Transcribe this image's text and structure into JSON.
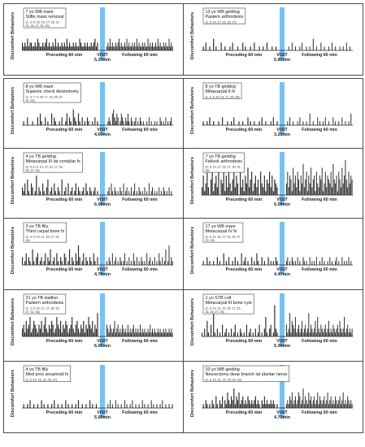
{
  "y_label": "Discomfort Behaviors",
  "segments": {
    "pre": "Preceding 60 min",
    "post": "Following 60 min",
    "visit": "VISIT"
  },
  "colors": {
    "bar": "#2b2b2b",
    "visit": "#78c1f3"
  },
  "chart_data": [
    {
      "type": "bar",
      "title": "7 yo WB mare",
      "subtitle": "Stifle mass removal",
      "codes": "(1, 3, 9, 15, 16, 17, 18, 21, 23, 25, 27, 29, 33)",
      "visit_duration": "5.23min",
      "pre": [
        2,
        1,
        2,
        1,
        3,
        1,
        2,
        2,
        1,
        1,
        2,
        1,
        3,
        2,
        1,
        1,
        2,
        1,
        2,
        3,
        1,
        2,
        1,
        1,
        2,
        1,
        3,
        1,
        2,
        1,
        1,
        2,
        1,
        2,
        1,
        3,
        1,
        2,
        1,
        1,
        2,
        1,
        2,
        1,
        1,
        3,
        2,
        1,
        1,
        2,
        1,
        2,
        1,
        1,
        2,
        1,
        2,
        3,
        1,
        2
      ],
      "post": [
        1,
        2,
        1,
        3,
        1,
        2,
        1,
        1,
        2,
        1,
        2,
        3,
        1,
        2,
        1,
        1,
        2,
        1,
        3,
        1,
        2,
        1,
        1,
        2,
        1,
        2,
        1,
        3,
        1,
        2,
        1,
        1,
        2,
        1,
        2,
        1,
        1,
        3,
        1,
        2,
        1,
        2,
        1,
        1,
        2,
        1,
        3,
        1,
        2,
        1,
        1,
        2,
        1,
        2,
        1,
        1,
        3,
        1,
        2,
        1
      ]
    },
    {
      "type": "bar",
      "title": "13 yo WB gelding",
      "subtitle": "Pastern arthrodesis",
      "codes": "(3, 9, 14, 17, 23, 25, 27)",
      "visit_duration": "5.83min",
      "pre": [
        0,
        1,
        0,
        2,
        0,
        0,
        1,
        0,
        0,
        3,
        0,
        1,
        0,
        0,
        0,
        2,
        0,
        0,
        1,
        0,
        0,
        0,
        1,
        0,
        2,
        0,
        0,
        0,
        1,
        0,
        0,
        0,
        2,
        0,
        1,
        0,
        0,
        0,
        1,
        0,
        0,
        2,
        0,
        0,
        0,
        1,
        0,
        0,
        1,
        0,
        0,
        2,
        0,
        0,
        0,
        1,
        0,
        0,
        1,
        0
      ],
      "post": [
        0,
        0,
        1,
        0,
        0,
        2,
        0,
        0,
        1,
        0,
        0,
        0,
        1,
        0,
        2,
        0,
        0,
        0,
        1,
        0,
        0,
        1,
        0,
        0,
        3,
        0,
        0,
        1,
        0,
        0,
        0,
        2,
        0,
        0,
        1,
        0,
        0,
        0,
        1,
        0,
        0,
        2,
        0,
        0,
        1,
        0,
        0,
        0,
        1,
        0,
        0,
        1,
        0,
        0,
        2,
        0,
        0,
        1,
        0,
        0
      ]
    },
    {
      "type": "bar",
      "title": "8 yo WB mare",
      "subtitle": "Superior check desmotomy",
      "codes": "(1, 3, 7, 9, 16, 17, 23, 25, 27, 30, 33)",
      "visit_duration": "4.63min",
      "pre": [
        0,
        1,
        0,
        0,
        2,
        0,
        0,
        0,
        1,
        0,
        0,
        0,
        2,
        0,
        3,
        1,
        0,
        0,
        2,
        0,
        1,
        0,
        0,
        3,
        0,
        2,
        1,
        0,
        0,
        1,
        0,
        2,
        0,
        0,
        1,
        3,
        0,
        2,
        1,
        0,
        4,
        2,
        1,
        0,
        3,
        1,
        0,
        2,
        0,
        1,
        0,
        2,
        1,
        0,
        0,
        1,
        0,
        2,
        0,
        1
      ],
      "post": [
        0,
        1,
        2,
        1,
        0,
        3,
        4,
        2,
        1,
        3,
        2,
        0,
        1,
        3,
        2,
        1,
        0,
        2,
        1,
        3,
        1,
        0,
        2,
        1,
        0,
        1,
        2,
        0,
        1,
        0,
        2,
        1,
        0,
        1,
        0,
        0,
        1,
        0,
        2,
        0,
        1,
        0,
        0,
        1,
        0,
        1,
        0,
        0,
        2,
        1,
        0,
        1,
        0,
        2,
        0,
        1,
        0,
        1,
        2,
        0
      ]
    },
    {
      "type": "bar",
      "title": "8 yo TB gelding",
      "subtitle": "Metacarpal II fx",
      "codes": "(1, 3, 9, 10, 11, 17, 25, 33)",
      "visit_duration": "3.23min",
      "pre": [
        0,
        1,
        0,
        0,
        1,
        0,
        2,
        0,
        0,
        1,
        0,
        0,
        0,
        1,
        0,
        0,
        2,
        0,
        0,
        0,
        1,
        0,
        0,
        1,
        0,
        2,
        0,
        0,
        0,
        1,
        0,
        0,
        1,
        0,
        0,
        0,
        2,
        0,
        1,
        0,
        0,
        1,
        0,
        0,
        0,
        1,
        0,
        2,
        0,
        0,
        1,
        0,
        0,
        0,
        1,
        0,
        2,
        0,
        0,
        1
      ],
      "post": [
        0,
        1,
        0,
        2,
        0,
        0,
        1,
        0,
        0,
        0,
        1,
        0,
        2,
        0,
        0,
        1,
        0,
        0,
        1,
        0,
        0,
        3,
        0,
        0,
        1,
        0,
        0,
        0,
        2,
        0,
        1,
        0,
        0,
        1,
        0,
        2,
        0,
        0,
        1,
        0,
        0,
        0,
        2,
        0,
        1,
        0,
        0,
        1,
        0,
        0,
        2,
        0,
        0,
        1,
        0,
        0,
        1,
        0,
        3,
        0
      ]
    },
    {
      "type": "bar",
      "title": "4 yo TB gelding",
      "subtitle": "Metacarpal III lat condylar fx",
      "codes": "(2, 4, 6, 9, 10, 12, 13, 17, 18, 25, 27, 33)",
      "visit_duration": "6.08min",
      "pre": [
        2,
        1,
        3,
        0,
        4,
        1,
        0,
        3,
        2,
        0,
        1,
        5,
        0,
        2,
        1,
        0,
        3,
        1,
        0,
        2,
        4,
        0,
        1,
        2,
        0,
        3,
        1,
        0,
        2,
        1,
        0,
        4,
        0,
        1,
        2,
        0,
        3,
        0,
        1,
        2,
        0,
        1,
        3,
        0,
        2,
        1,
        0,
        1,
        2,
        0,
        3,
        1,
        0,
        2,
        1,
        0,
        1,
        2,
        0,
        1
      ],
      "post": [
        0,
        1,
        2,
        0,
        3,
        1,
        0,
        2,
        1,
        0,
        1,
        0,
        2,
        1,
        0,
        3,
        0,
        1,
        2,
        0,
        1,
        0,
        2,
        0,
        1,
        3,
        0,
        1,
        0,
        2,
        1,
        0,
        1,
        0,
        2,
        0,
        1,
        0,
        3,
        0,
        1,
        2,
        0,
        1,
        0,
        1,
        0,
        2,
        0,
        1,
        0,
        2,
        1,
        0,
        1,
        0,
        2,
        0,
        1,
        0
      ]
    },
    {
      "type": "bar",
      "title": "7 yo TB gelding",
      "subtitle": "Fetlock arthrodesis",
      "codes": "(2, 9, 10, 17, 23, 27, 30, 31, 33)",
      "visit_duration": "6.58min",
      "pre": [
        2,
        5,
        1,
        3,
        6,
        2,
        0,
        4,
        7,
        1,
        3,
        5,
        2,
        6,
        0,
        4,
        3,
        8,
        1,
        5,
        2,
        6,
        3,
        1,
        4,
        7,
        2,
        5,
        3,
        0,
        6,
        2,
        4,
        1,
        5,
        3,
        7,
        2,
        4,
        6,
        1,
        3,
        5,
        2,
        4,
        0,
        6,
        3,
        2,
        5,
        1,
        4,
        3,
        6,
        2,
        5,
        1,
        4,
        3,
        2
      ],
      "post": [
        3,
        6,
        2,
        5,
        4,
        1,
        7,
        3,
        5,
        2,
        6,
        4,
        1,
        5,
        3,
        8,
        2,
        4,
        6,
        1,
        5,
        3,
        7,
        2,
        4,
        5,
        1,
        6,
        3,
        2,
        5,
        4,
        7,
        1,
        3,
        6,
        2,
        5,
        4,
        3,
        6,
        2,
        8,
        4,
        3,
        5,
        1,
        6,
        4,
        2,
        7,
        3,
        5,
        9,
        4,
        2,
        6,
        3,
        5,
        4
      ]
    },
    {
      "type": "bar",
      "title": "3 yo TB filly",
      "subtitle": "Third carpal bone fx",
      "codes": "(2, 3, 9, 10, 11, 16, 17, 23, 25)",
      "visit_duration": "4.78min",
      "pre": [
        2,
        0,
        1,
        3,
        0,
        2,
        1,
        0,
        4,
        1,
        0,
        2,
        3,
        0,
        1,
        2,
        0,
        1,
        3,
        0,
        2,
        1,
        4,
        0,
        1,
        2,
        0,
        3,
        1,
        0,
        2,
        1,
        0,
        3,
        2,
        0,
        1,
        4,
        0,
        2,
        1,
        0,
        3,
        1,
        5,
        2,
        0,
        1,
        3,
        0,
        2,
        1,
        0,
        2,
        1,
        0,
        3,
        1,
        0,
        2
      ],
      "post": [
        1,
        0,
        2,
        1,
        0,
        3,
        0,
        1,
        2,
        0,
        1,
        0,
        2,
        1,
        0,
        1,
        3,
        0,
        1,
        0,
        2,
        0,
        1,
        0,
        3,
        1,
        0,
        2,
        0,
        1,
        0,
        2,
        1,
        0,
        1,
        0,
        3,
        0,
        1,
        2,
        0,
        1,
        0,
        2,
        0,
        1,
        0,
        3,
        1,
        0,
        2,
        0,
        1,
        4,
        0,
        1,
        5,
        0,
        2,
        1
      ]
    },
    {
      "type": "bar",
      "title": "17 yo WB mare",
      "subtitle": "Metacarpal IV fx",
      "codes": "(2, 9, 11, 16, 17, 23, 25, 27, 29, 33)",
      "visit_duration": "4.47min",
      "pre": [
        0,
        1,
        0,
        0,
        2,
        0,
        1,
        0,
        0,
        1,
        0,
        0,
        2,
        0,
        1,
        0,
        0,
        3,
        0,
        1,
        0,
        2,
        0,
        0,
        1,
        0,
        2,
        0,
        1,
        0,
        0,
        3,
        0,
        1,
        2,
        0,
        1,
        0,
        0,
        2,
        0,
        1,
        0,
        3,
        1,
        0,
        0,
        2,
        0,
        1,
        0,
        0,
        2,
        0,
        1,
        0,
        1,
        0,
        2,
        1
      ],
      "post": [
        1,
        2,
        0,
        1,
        0,
        2,
        1,
        0,
        1,
        0,
        2,
        0,
        1,
        0,
        0,
        2,
        1,
        0,
        1,
        0,
        0,
        2,
        0,
        1,
        0,
        1,
        0,
        2,
        0,
        0,
        1,
        0,
        2,
        0,
        1,
        0,
        0,
        1,
        0,
        2,
        0,
        1,
        0,
        0,
        1,
        2,
        0,
        1,
        0,
        0,
        2,
        0,
        1,
        0,
        1,
        0,
        2,
        0,
        1,
        0
      ]
    },
    {
      "type": "bar",
      "title": "21 yo TB stallion",
      "subtitle": "Pastern arthrodesis",
      "codes": "(1, 3, 9, 10, 11, 17, 18, 23, 27, 31, 33)",
      "visit_duration": "6.05min",
      "pre": [
        2,
        3,
        1,
        4,
        2,
        3,
        5,
        1,
        2,
        4,
        3,
        2,
        1,
        3,
        2,
        4,
        1,
        3,
        5,
        2,
        1,
        3,
        2,
        4,
        3,
        1,
        2,
        5,
        3,
        2,
        4,
        1,
        3,
        2,
        4,
        3,
        1,
        2,
        3,
        5,
        2,
        1,
        3,
        4,
        2,
        1,
        3,
        2,
        4,
        1,
        3,
        2,
        5,
        3,
        2,
        4,
        1,
        3,
        2,
        6
      ],
      "post": [
        3,
        2,
        1,
        3,
        2,
        1,
        2,
        4,
        1,
        2,
        3,
        1,
        2,
        1,
        3,
        2,
        1,
        2,
        1,
        3,
        1,
        2,
        1,
        2,
        3,
        1,
        2,
        1,
        2,
        1,
        3,
        1,
        2,
        1,
        2,
        1,
        1,
        2,
        1,
        3,
        1,
        2,
        1,
        2,
        1,
        1,
        2,
        1,
        2,
        1,
        1,
        2,
        1,
        2,
        1,
        1,
        2,
        1,
        2,
        1
      ]
    },
    {
      "type": "bar",
      "title": "1 yo STB colt",
      "subtitle": "Metacarpal III bone cyst",
      "codes": "(2, 9, 10, 11, 12, 16, 17, 23, 24, 25, 27, 33)",
      "visit_duration": "5.30min",
      "pre": [
        1,
        0,
        2,
        0,
        4,
        1,
        0,
        3,
        0,
        6,
        1,
        0,
        2,
        0,
        1,
        0,
        3,
        0,
        1,
        2,
        0,
        1,
        0,
        2,
        0,
        1,
        3,
        0,
        1,
        0,
        2,
        1,
        0,
        1,
        0,
        3,
        0,
        1,
        2,
        0,
        1,
        0,
        2,
        0,
        1,
        3,
        0,
        1,
        0,
        2,
        5,
        1,
        0,
        2,
        3,
        0,
        1,
        8,
        2,
        1
      ],
      "post": [
        3,
        1,
        2,
        6,
        1,
        4,
        3,
        2,
        5,
        1,
        2,
        3,
        1,
        2,
        4,
        1,
        2,
        3,
        1,
        2,
        6,
        1,
        3,
        2,
        1,
        2,
        4,
        1,
        5,
        2,
        1,
        3,
        2,
        1,
        2,
        3,
        1,
        2,
        4,
        1,
        2,
        1,
        3,
        2,
        1,
        2,
        3,
        1,
        4,
        2,
        1,
        2,
        5,
        1,
        2,
        3,
        1,
        2,
        1,
        2
      ]
    },
    {
      "type": "bar",
      "title": "4 yo TB filly",
      "subtitle": "Med prox sesamoid fx",
      "codes": "(3, 9, 10, 16, 23, 25, 27)",
      "visit_duration": "5.50min",
      "pre": [
        0,
        1,
        0,
        0,
        1,
        0,
        2,
        0,
        0,
        1,
        0,
        0,
        1,
        0,
        0,
        2,
        0,
        1,
        0,
        0,
        1,
        0,
        0,
        1,
        0,
        2,
        0,
        0,
        1,
        0,
        0,
        1,
        0,
        0,
        2,
        0,
        1,
        0,
        0,
        1,
        0,
        0,
        1,
        0,
        2,
        0,
        0,
        1,
        0,
        0,
        1,
        0,
        0,
        2,
        0,
        1,
        0,
        0,
        1,
        0
      ],
      "post": [
        0,
        1,
        0,
        2,
        0,
        1,
        0,
        0,
        2,
        0,
        1,
        0,
        0,
        1,
        0,
        0,
        2,
        0,
        1,
        0,
        0,
        1,
        0,
        2,
        0,
        0,
        1,
        0,
        0,
        1,
        0,
        0,
        2,
        0,
        1,
        0,
        0,
        1,
        0,
        0,
        2,
        0,
        1,
        0,
        0,
        1,
        0,
        0,
        1,
        0,
        2,
        0,
        0,
        1,
        0,
        0,
        1,
        0,
        0,
        1
      ]
    },
    {
      "type": "bar",
      "title": "20 yo WB gelding",
      "subtitle": "Neurectomy deep branch lat plantar nerve",
      "codes": "(2, 9, 10, 21, 22, 23, 26, 29)",
      "visit_duration": "4.73min",
      "pre": [
        0,
        1,
        0,
        2,
        1,
        0,
        1,
        0,
        2,
        1,
        0,
        3,
        1,
        0,
        2,
        1,
        3,
        0,
        2,
        1,
        4,
        2,
        1,
        3,
        2,
        5,
        1,
        3,
        2,
        4,
        1,
        2,
        3,
        1,
        2,
        1,
        3,
        2,
        1,
        2,
        1,
        2,
        3,
        1,
        2,
        1,
        0,
        2,
        1,
        3,
        1,
        2,
        1,
        1,
        2,
        1,
        2,
        1,
        0,
        1
      ],
      "post": [
        1,
        2,
        1,
        3,
        2,
        4,
        1,
        2,
        3,
        1,
        2,
        4,
        3,
        1,
        2,
        5,
        1,
        3,
        2,
        1,
        4,
        2,
        3,
        1,
        2,
        3,
        1,
        2,
        4,
        1,
        3,
        2,
        1,
        2,
        3,
        1,
        2,
        4,
        1,
        2,
        3,
        1,
        2,
        1,
        3,
        2,
        1,
        2,
        3,
        1,
        2,
        4,
        1,
        2,
        1,
        3,
        2,
        1,
        2,
        1
      ]
    }
  ]
}
